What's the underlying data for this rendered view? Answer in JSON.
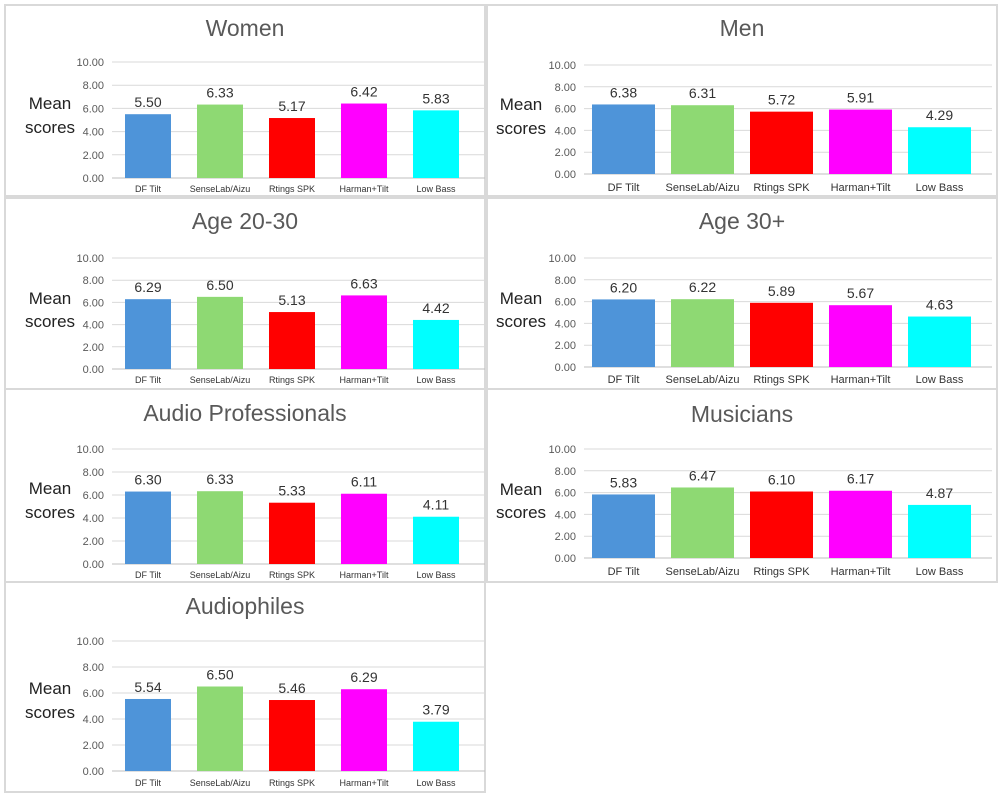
{
  "chart_data": [
    {
      "type": "bar",
      "title": "Women",
      "ylabel_lines": [
        "Mean",
        "scores"
      ],
      "ylim": [
        0,
        10
      ],
      "tick_labels": [
        "0.00",
        "2.00",
        "4.00",
        "6.00",
        "8.00",
        "10.00"
      ],
      "categories": [
        "DF Tilt",
        "SenseLab/Aizu",
        "Rtings SPK",
        "Harman+Tilt",
        "Low Bass"
      ],
      "values": [
        5.5,
        6.33,
        5.17,
        6.42,
        5.83
      ],
      "value_labels": [
        "5.50",
        "6.33",
        "5.17",
        "6.42",
        "5.83"
      ],
      "colors": [
        "#4e94d9",
        "#8ed973",
        "#ff0000",
        "#ff00ff",
        "#00ffff"
      ]
    },
    {
      "type": "bar",
      "title": "Men",
      "ylabel_lines": [
        "Mean",
        "scores"
      ],
      "ylim": [
        0,
        10
      ],
      "tick_labels": [
        "0.00",
        "2.00",
        "4.00",
        "6.00",
        "8.00",
        "10.00"
      ],
      "categories": [
        "DF Tilt",
        "SenseLab/Aizu",
        "Rtings SPK",
        "Harman+Tilt",
        "Low Bass"
      ],
      "values": [
        6.38,
        6.31,
        5.72,
        5.91,
        4.29
      ],
      "value_labels": [
        "6.38",
        "6.31",
        "5.72",
        "5.91",
        "4.29"
      ],
      "colors": [
        "#4e94d9",
        "#8ed973",
        "#ff0000",
        "#ff00ff",
        "#00ffff"
      ]
    },
    {
      "type": "bar",
      "title": "Age 20-30",
      "ylabel_lines": [
        "Mean",
        "scores"
      ],
      "ylim": [
        0,
        10
      ],
      "tick_labels": [
        "0.00",
        "2.00",
        "4.00",
        "6.00",
        "8.00",
        "10.00"
      ],
      "categories": [
        "DF Tilt",
        "SenseLab/Aizu",
        "Rtings SPK",
        "Harman+Tilt",
        "Low Bass"
      ],
      "values": [
        6.29,
        6.5,
        5.13,
        6.63,
        4.42
      ],
      "value_labels": [
        "6.29",
        "6.50",
        "5.13",
        "6.63",
        "4.42"
      ],
      "colors": [
        "#4e94d9",
        "#8ed973",
        "#ff0000",
        "#ff00ff",
        "#00ffff"
      ]
    },
    {
      "type": "bar",
      "title": "Age 30+",
      "ylabel_lines": [
        "Mean",
        "scores"
      ],
      "ylim": [
        0,
        10
      ],
      "tick_labels": [
        "0.00",
        "2.00",
        "4.00",
        "6.00",
        "8.00",
        "10.00"
      ],
      "categories": [
        "DF Tilt",
        "SenseLab/Aizu",
        "Rtings SPK",
        "Harman+Tilt",
        "Low Bass"
      ],
      "values": [
        6.2,
        6.22,
        5.89,
        5.67,
        4.63
      ],
      "value_labels": [
        "6.20",
        "6.22",
        "5.89",
        "5.67",
        "4.63"
      ],
      "colors": [
        "#4e94d9",
        "#8ed973",
        "#ff0000",
        "#ff00ff",
        "#00ffff"
      ]
    },
    {
      "type": "bar",
      "title": "Audio Professionals",
      "ylabel_lines": [
        "Mean",
        "scores"
      ],
      "ylim": [
        0,
        10
      ],
      "tick_labels": [
        "0.00",
        "2.00",
        "4.00",
        "6.00",
        "8.00",
        "10.00"
      ],
      "categories": [
        "DF Tilt",
        "SenseLab/Aizu",
        "Rtings SPK",
        "Harman+Tilt",
        "Low Bass"
      ],
      "values": [
        6.3,
        6.33,
        5.33,
        6.11,
        4.11
      ],
      "value_labels": [
        "6.30",
        "6.33",
        "5.33",
        "6.11",
        "4.11"
      ],
      "colors": [
        "#4e94d9",
        "#8ed973",
        "#ff0000",
        "#ff00ff",
        "#00ffff"
      ]
    },
    {
      "type": "bar",
      "title": "Musicians",
      "ylabel_lines": [
        "Mean",
        "scores"
      ],
      "ylim": [
        0,
        10
      ],
      "tick_labels": [
        "0.00",
        "2.00",
        "4.00",
        "6.00",
        "8.00",
        "10.00"
      ],
      "categories": [
        "DF Tilt",
        "SenseLab/Aizu",
        "Rtings SPK",
        "Harman+Tilt",
        "Low Bass"
      ],
      "values": [
        5.83,
        6.47,
        6.1,
        6.17,
        4.87
      ],
      "value_labels": [
        "5.83",
        "6.47",
        "6.10",
        "6.17",
        "4.87"
      ],
      "colors": [
        "#4e94d9",
        "#8ed973",
        "#ff0000",
        "#ff00ff",
        "#00ffff"
      ]
    },
    {
      "type": "bar",
      "title": "Audiophiles",
      "ylabel_lines": [
        "Mean",
        "scores"
      ],
      "ylim": [
        0,
        10
      ],
      "tick_labels": [
        "0.00",
        "2.00",
        "4.00",
        "6.00",
        "8.00",
        "10.00"
      ],
      "categories": [
        "DF Tilt",
        "SenseLab/Aizu",
        "Rtings SPK",
        "Harman+Tilt",
        "Low Bass"
      ],
      "values": [
        5.54,
        6.5,
        5.46,
        6.29,
        3.79
      ],
      "value_labels": [
        "5.54",
        "6.50",
        "5.46",
        "6.29",
        "3.79"
      ],
      "colors": [
        "#4e94d9",
        "#8ed973",
        "#ff0000",
        "#ff00ff",
        "#00ffff"
      ]
    }
  ]
}
